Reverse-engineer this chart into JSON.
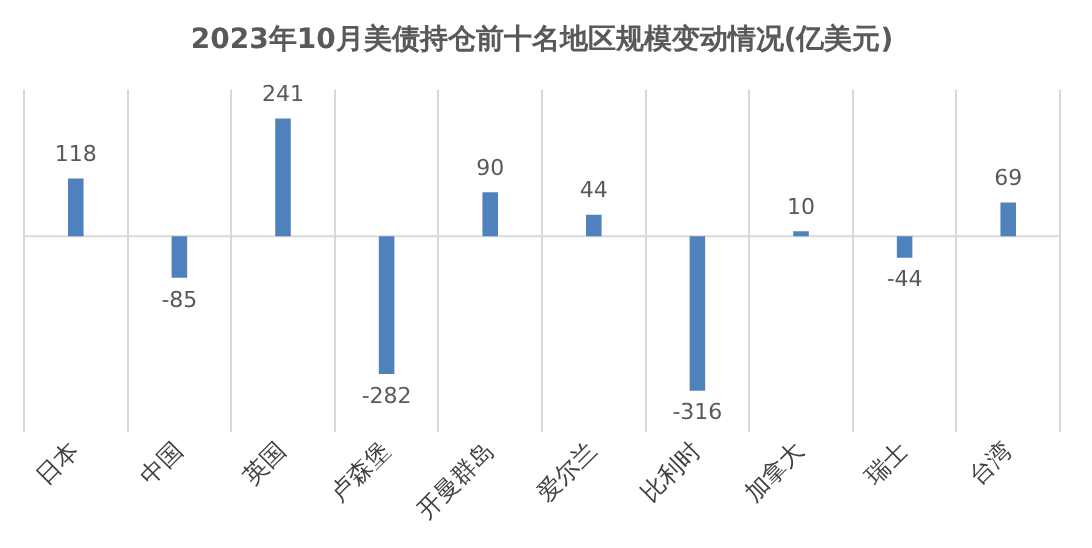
{
  "chart_data": {
    "type": "bar",
    "title": "2023年10月美债持仓前十名地区规模变动情况(亿美元)",
    "categories": [
      "日本",
      "中国",
      "英国",
      "卢森堡",
      "开曼群岛",
      "爱尔兰",
      "比利时",
      "加拿大",
      "瑞士",
      "台湾"
    ],
    "values": [
      118,
      -85,
      241,
      -282,
      90,
      44,
      -316,
      10,
      -44,
      69
    ],
    "color": "#4f81bd",
    "data_labels": true,
    "grid": "x",
    "legend": false
  }
}
